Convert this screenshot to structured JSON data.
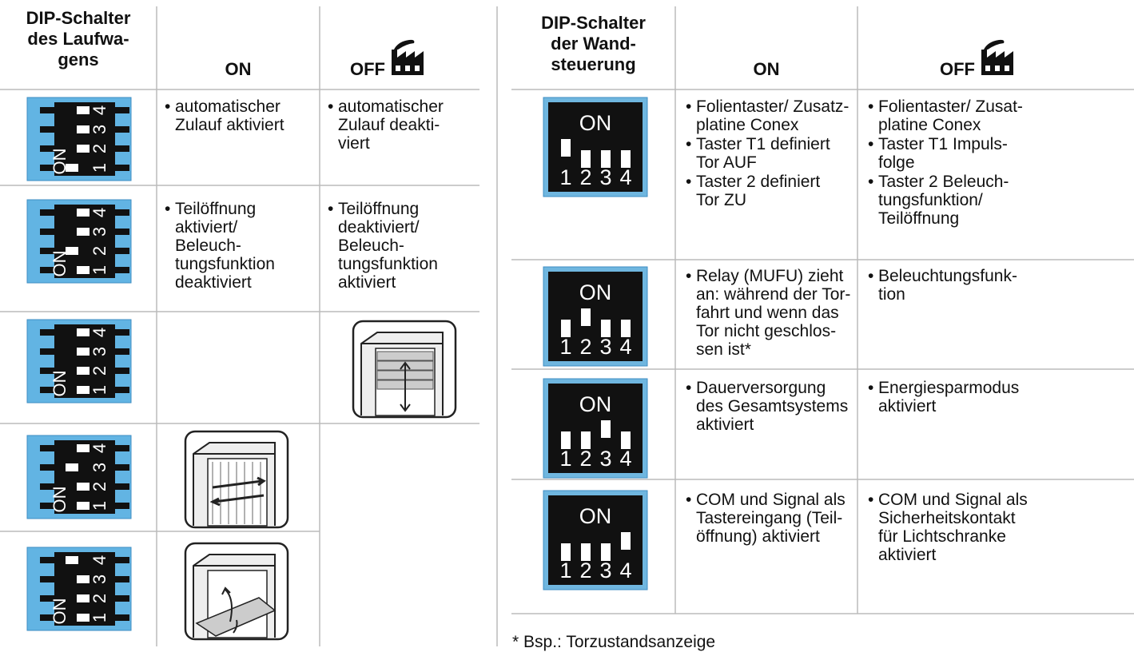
{
  "left_table": {
    "headers": [
      "DIP-Schalter\ndes Laufwa-\ngens",
      "ON",
      "OFF"
    ],
    "switch_on_label": "ON",
    "switch_numbers": [
      "1",
      "2",
      "3",
      "4"
    ],
    "rows": [
      {
        "on": [
          "automatischer\nZulauf aktiviert"
        ],
        "off": [
          "automatischer\nZulauf deakti-\nviert"
        ]
      },
      {
        "on": [
          "Teilöffnung\naktiviert/\nBeleuch-\ntungsfunktion\ndeaktiviert"
        ],
        "off": [
          "Teilöffnung\ndeaktiviert/\nBeleuch-\ntungsfunktion\naktiviert"
        ]
      }
    ]
  },
  "right_table": {
    "headers": [
      "DIP-Schalter\nder Wand-\nsteuerung",
      "ON",
      "OFF"
    ],
    "switch_on_label": "ON",
    "switch_numbers": [
      "1",
      "2",
      "3",
      "4"
    ],
    "rows": [
      {
        "on": [
          "Folientaster/ Zusatz-\nplatine Conex",
          "Taster T1 definiert\nTor AUF",
          "Taster 2 definiert\nTor ZU"
        ],
        "off": [
          "Folientaster/ Zusat-\nplatine Conex",
          "Taster T1 Impuls-\nfolge",
          "Taster 2 Beleuch-\ntungsfunktion/\nTeilöffnung"
        ]
      },
      {
        "on": [
          "Relay (MUFU) zieht\nan: während der Tor-\nfahrt und wenn das\nTor nicht geschlos-\nsen ist*"
        ],
        "off": [
          "Beleuchtungsfunk-\ntion"
        ]
      },
      {
        "on": [
          "Dauerversorgung\ndes Gesamtsystems\naktiviert"
        ],
        "off": [
          "Energiesparmodus\naktiviert"
        ]
      },
      {
        "on": [
          "COM und Signal als\nTastereingang (Teil-\nöffnung) aktiviert"
        ],
        "off": [
          "COM und Signal als\nSicherheitskontakt\nfür Lichtschranke\naktiviert"
        ]
      }
    ]
  },
  "footnote": "* Bsp.: Torzustandsanzeige"
}
